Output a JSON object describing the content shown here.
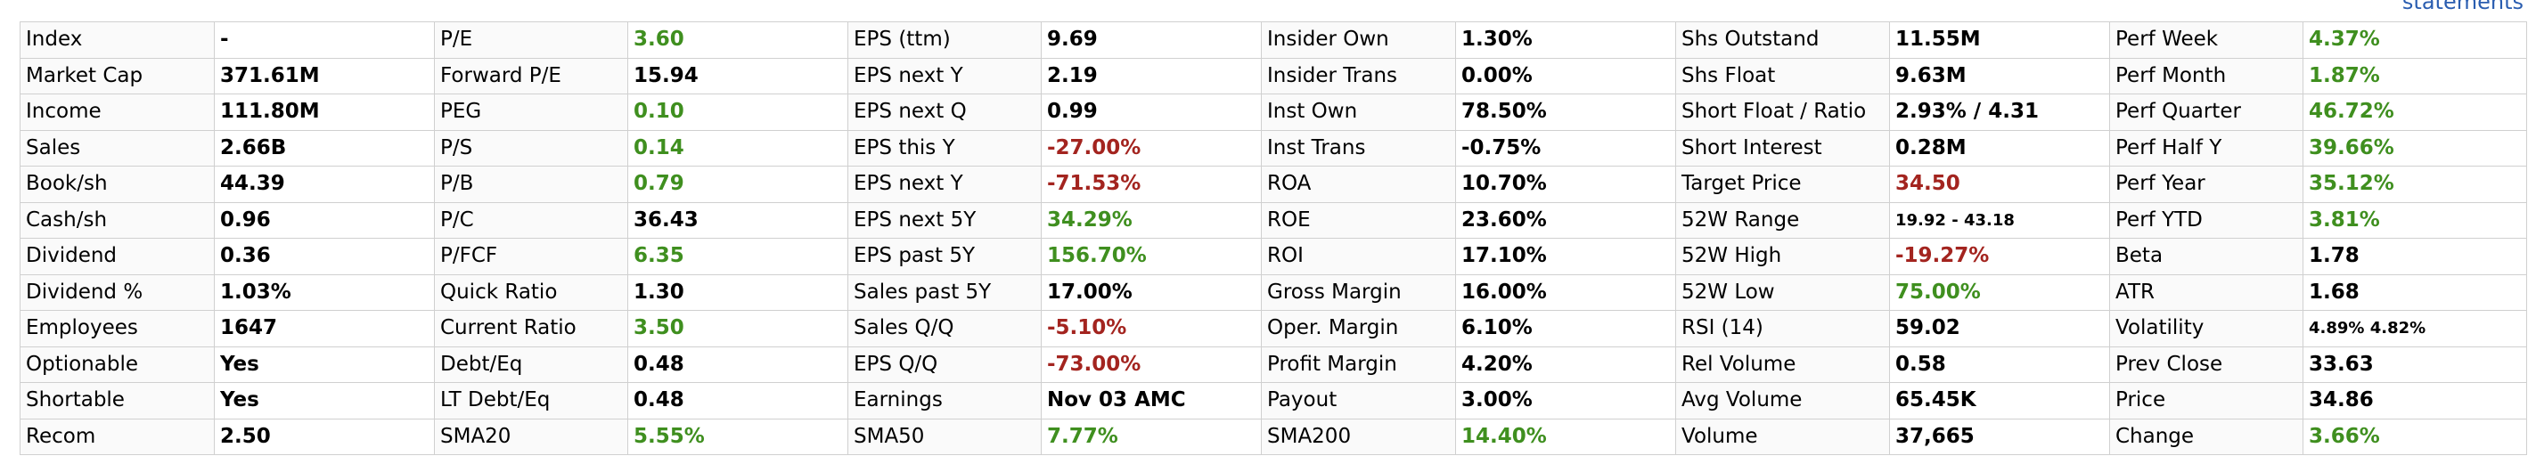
{
  "header": {
    "link": "statements"
  },
  "table": {
    "rows": [
      [
        {
          "label": "Index",
          "value": "-"
        },
        {
          "label": "P/E",
          "value": "3.60",
          "color": "green"
        },
        {
          "label": "EPS (ttm)",
          "value": "9.69"
        },
        {
          "label": "Insider Own",
          "value": "1.30%"
        },
        {
          "label": "Shs Outstand",
          "value": "11.55M"
        },
        {
          "label": "Perf Week",
          "value": "4.37%",
          "color": "green"
        }
      ],
      [
        {
          "label": "Market Cap",
          "value": "371.61M"
        },
        {
          "label": "Forward P/E",
          "value": "15.94"
        },
        {
          "label": "EPS next Y",
          "value": "2.19"
        },
        {
          "label": "Insider Trans",
          "value": "0.00%"
        },
        {
          "label": "Shs Float",
          "value": "9.63M"
        },
        {
          "label": "Perf Month",
          "value": "1.87%",
          "color": "green"
        }
      ],
      [
        {
          "label": "Income",
          "value": "111.80M"
        },
        {
          "label": "PEG",
          "value": "0.10",
          "color": "green"
        },
        {
          "label": "EPS next Q",
          "value": "0.99"
        },
        {
          "label": "Inst Own",
          "value": "78.50%"
        },
        {
          "label": "Short Float / Ratio",
          "value": "2.93% / 4.31"
        },
        {
          "label": "Perf Quarter",
          "value": "46.72%",
          "color": "green"
        }
      ],
      [
        {
          "label": "Sales",
          "value": "2.66B"
        },
        {
          "label": "P/S",
          "value": "0.14",
          "color": "green"
        },
        {
          "label": "EPS this Y",
          "value": "-27.00%",
          "color": "red"
        },
        {
          "label": "Inst Trans",
          "value": "-0.75%"
        },
        {
          "label": "Short Interest",
          "value": "0.28M"
        },
        {
          "label": "Perf Half Y",
          "value": "39.66%",
          "color": "green"
        }
      ],
      [
        {
          "label": "Book/sh",
          "value": "44.39"
        },
        {
          "label": "P/B",
          "value": "0.79",
          "color": "green"
        },
        {
          "label": "EPS next Y",
          "value": "-71.53%",
          "color": "red"
        },
        {
          "label": "ROA",
          "value": "10.70%"
        },
        {
          "label": "Target Price",
          "value": "34.50",
          "color": "red"
        },
        {
          "label": "Perf Year",
          "value": "35.12%",
          "color": "green"
        }
      ],
      [
        {
          "label": "Cash/sh",
          "value": "0.96"
        },
        {
          "label": "P/C",
          "value": "36.43"
        },
        {
          "label": "EPS next 5Y",
          "value": "34.29%",
          "color": "green"
        },
        {
          "label": "ROE",
          "value": "23.60%"
        },
        {
          "label": "52W Range",
          "value": "19.92 - 43.18"
        },
        {
          "label": "Perf YTD",
          "value": "3.81%",
          "color": "green"
        }
      ],
      [
        {
          "label": "Dividend",
          "value": "0.36"
        },
        {
          "label": "P/FCF",
          "value": "6.35",
          "color": "green"
        },
        {
          "label": "EPS past 5Y",
          "value": "156.70%",
          "color": "green"
        },
        {
          "label": "ROI",
          "value": "17.10%"
        },
        {
          "label": "52W High",
          "value": "-19.27%",
          "color": "red"
        },
        {
          "label": "Beta",
          "value": "1.78"
        }
      ],
      [
        {
          "label": "Dividend %",
          "value": "1.03%"
        },
        {
          "label": "Quick Ratio",
          "value": "1.30"
        },
        {
          "label": "Sales past 5Y",
          "value": "17.00%"
        },
        {
          "label": "Gross Margin",
          "value": "16.00%"
        },
        {
          "label": "52W Low",
          "value": "75.00%",
          "color": "green"
        },
        {
          "label": "ATR",
          "value": "1.68"
        }
      ],
      [
        {
          "label": "Employees",
          "value": "1647"
        },
        {
          "label": "Current Ratio",
          "value": "3.50",
          "color": "green"
        },
        {
          "label": "Sales Q/Q",
          "value": "-5.10%",
          "color": "red"
        },
        {
          "label": "Oper. Margin",
          "value": "6.10%"
        },
        {
          "label": "RSI (14)",
          "value": "59.02"
        },
        {
          "label": "Volatility",
          "value": "4.89% 4.82%"
        }
      ],
      [
        {
          "label": "Optionable",
          "value": "Yes"
        },
        {
          "label": "Debt/Eq",
          "value": "0.48"
        },
        {
          "label": "EPS Q/Q",
          "value": "-73.00%",
          "color": "red"
        },
        {
          "label": "Profit Margin",
          "value": "4.20%"
        },
        {
          "label": "Rel Volume",
          "value": "0.58"
        },
        {
          "label": "Prev Close",
          "value": "33.63"
        }
      ],
      [
        {
          "label": "Shortable",
          "value": "Yes"
        },
        {
          "label": "LT Debt/Eq",
          "value": "0.48"
        },
        {
          "label": "Earnings",
          "value": "Nov 03 AMC"
        },
        {
          "label": "Payout",
          "value": "3.00%"
        },
        {
          "label": "Avg Volume",
          "value": "65.45K"
        },
        {
          "label": "Price",
          "value": "34.86"
        }
      ],
      [
        {
          "label": "Recom",
          "value": "2.50"
        },
        {
          "label": "SMA20",
          "value": "5.55%",
          "color": "green"
        },
        {
          "label": "SMA50",
          "value": "7.77%",
          "color": "green"
        },
        {
          "label": "SMA200",
          "value": "14.40%",
          "color": "green"
        },
        {
          "label": "Volume",
          "value": "37,665"
        },
        {
          "label": "Change",
          "value": "3.66%",
          "color": "green"
        }
      ]
    ]
  }
}
